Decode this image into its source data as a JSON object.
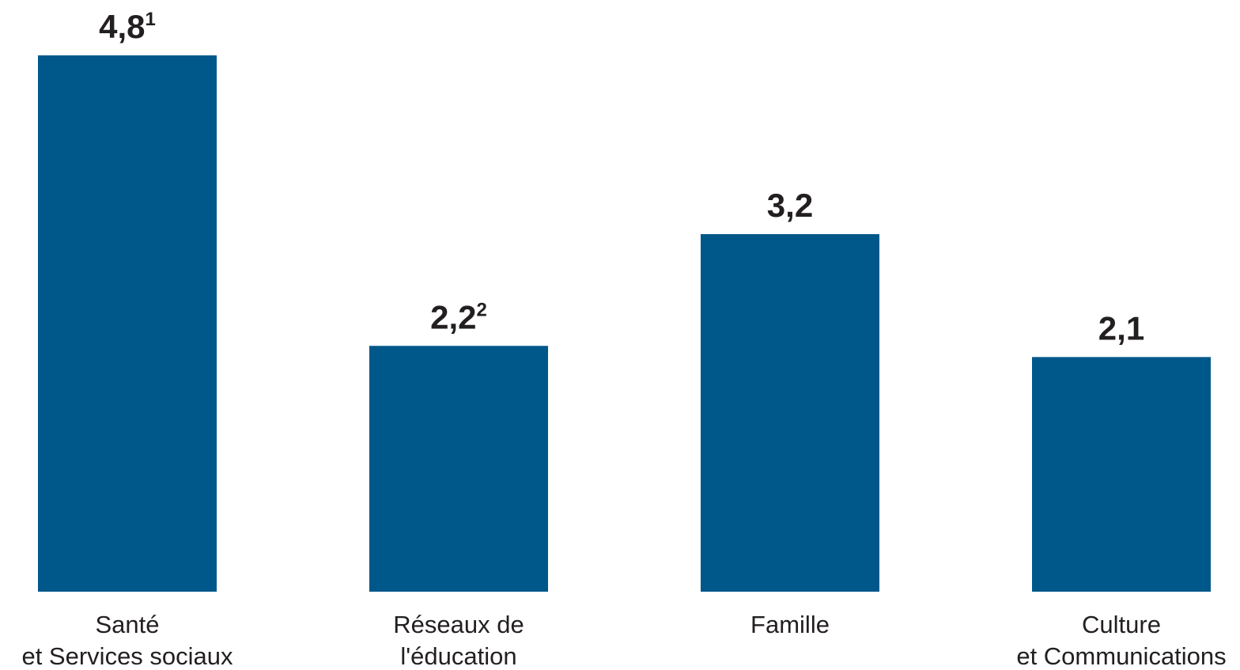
{
  "chart_data": {
    "type": "bar",
    "categories": [
      "Santé\net Services sociaux",
      "Réseaux de\nl'éducation",
      "Famille",
      "Culture\net Communications"
    ],
    "values": [
      4.8,
      2.2,
      3.2,
      2.1
    ],
    "value_labels": [
      "4,8",
      "2,2",
      "3,2",
      "2,1"
    ],
    "value_label_notes": [
      "1",
      "2",
      null,
      null
    ],
    "color": "#00578a"
  }
}
